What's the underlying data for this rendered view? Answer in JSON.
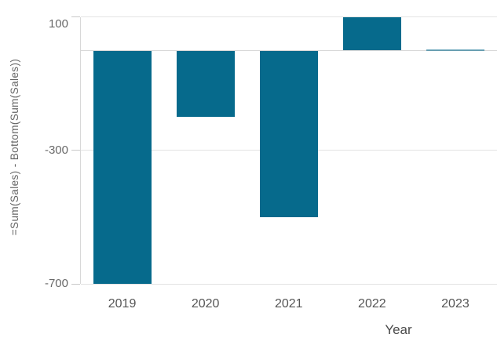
{
  "chart_data": {
    "type": "bar",
    "title": "",
    "x_axis_title": "Year",
    "y_axis_title": "=Sum(Sales) - Bottom(Sum(Sales))",
    "categories": [
      "2019",
      "2020",
      "2021",
      "2022",
      "2023"
    ],
    "values": [
      -700,
      -200,
      -500,
      100,
      0
    ],
    "y_ticks": [
      100,
      -300,
      -700
    ],
    "y_tick_labels": [
      "100",
      "-300",
      "-700"
    ],
    "ylim": [
      -700,
      100
    ],
    "gridline_values": [
      100,
      0,
      -300,
      -700
    ],
    "grid": "on",
    "legend": "none",
    "colors": {
      "bar": "#066a8c",
      "gridline": "#e3e3e3",
      "zero_line": "#d8d8d8",
      "axis_line": "#d8d8d8",
      "tick_mark": "#c9c9c9",
      "tick_text": "#696969",
      "category_text": "#555555",
      "axis_title_text": "#4a4a4a",
      "background": "#ffffff"
    }
  }
}
